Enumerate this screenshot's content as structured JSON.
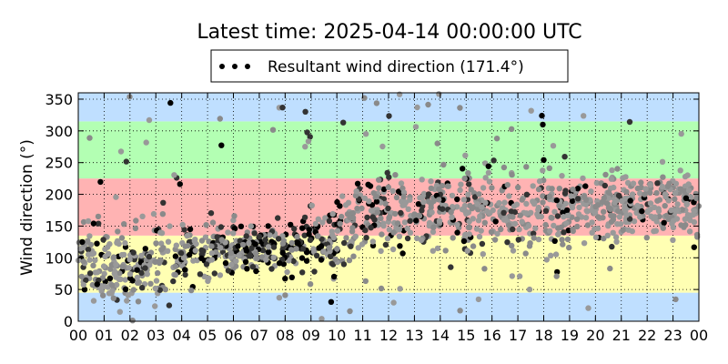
{
  "chart_data": {
    "type": "scatter",
    "title": "Latest time: 2025-04-14 00:00:00 UTC",
    "ylabel": "Wind direction (°)",
    "xlabel": "",
    "xlim": [
      0,
      24
    ],
    "ylim": [
      0,
      360
    ],
    "grid": true,
    "legend": {
      "position": "top-center",
      "label": "Resultant wind direction (171.4°)"
    },
    "x_ticks": [
      "00",
      "01",
      "02",
      "03",
      "04",
      "05",
      "06",
      "07",
      "08",
      "09",
      "10",
      "11",
      "12",
      "13",
      "14",
      "15",
      "16",
      "17",
      "18",
      "19",
      "20",
      "21",
      "22",
      "23",
      "00"
    ],
    "x_tick_values": [
      0,
      1,
      2,
      3,
      4,
      5,
      6,
      7,
      8,
      9,
      10,
      11,
      12,
      13,
      14,
      15,
      16,
      17,
      18,
      19,
      20,
      21,
      22,
      23,
      24
    ],
    "y_ticks": [
      0,
      50,
      100,
      150,
      200,
      250,
      300,
      350
    ],
    "bands": [
      {
        "from": 0,
        "to": 45,
        "color": "#bfdfff"
      },
      {
        "from": 45,
        "to": 135,
        "color": "#ffffb3"
      },
      {
        "from": 135,
        "to": 225,
        "color": "#ffb3b3"
      },
      {
        "from": 225,
        "to": 315,
        "color": "#b3ffb3"
      },
      {
        "from": 315,
        "to": 360,
        "color": "#bfdfff"
      }
    ],
    "point_colors": {
      "dark": "#000000",
      "light": "#999999"
    },
    "series": [
      {
        "name": "Resultant wind direction (171.4°)",
        "profile_hours": [
          0,
          1,
          2,
          3,
          4,
          5,
          6,
          7,
          8,
          9,
          10,
          11,
          12,
          13,
          14,
          15,
          16,
          17,
          18,
          19,
          20,
          21,
          22,
          23,
          24
        ],
        "typical_direction": [
          95,
          90,
          90,
          95,
          105,
          115,
          115,
          115,
          120,
          125,
          135,
          170,
          175,
          180,
          180,
          175,
          170,
          170,
          175,
          180,
          180,
          185,
          190,
          185,
          180
        ],
        "typical_spread": [
          50,
          55,
          60,
          55,
          45,
          40,
          35,
          35,
          35,
          40,
          50,
          55,
          55,
          55,
          55,
          60,
          60,
          60,
          60,
          60,
          55,
          55,
          50,
          45,
          45
        ],
        "typical_darkness": [
          0.2,
          0.2,
          0.2,
          0.25,
          0.35,
          0.45,
          0.55,
          0.6,
          0.6,
          0.6,
          0.5,
          0.35,
          0.25,
          0.25,
          0.25,
          0.2,
          0.15,
          0.15,
          0.15,
          0.15,
          0.1,
          0.1,
          0.1,
          0.1,
          0.1
        ],
        "sample_count": 1400
      }
    ]
  }
}
